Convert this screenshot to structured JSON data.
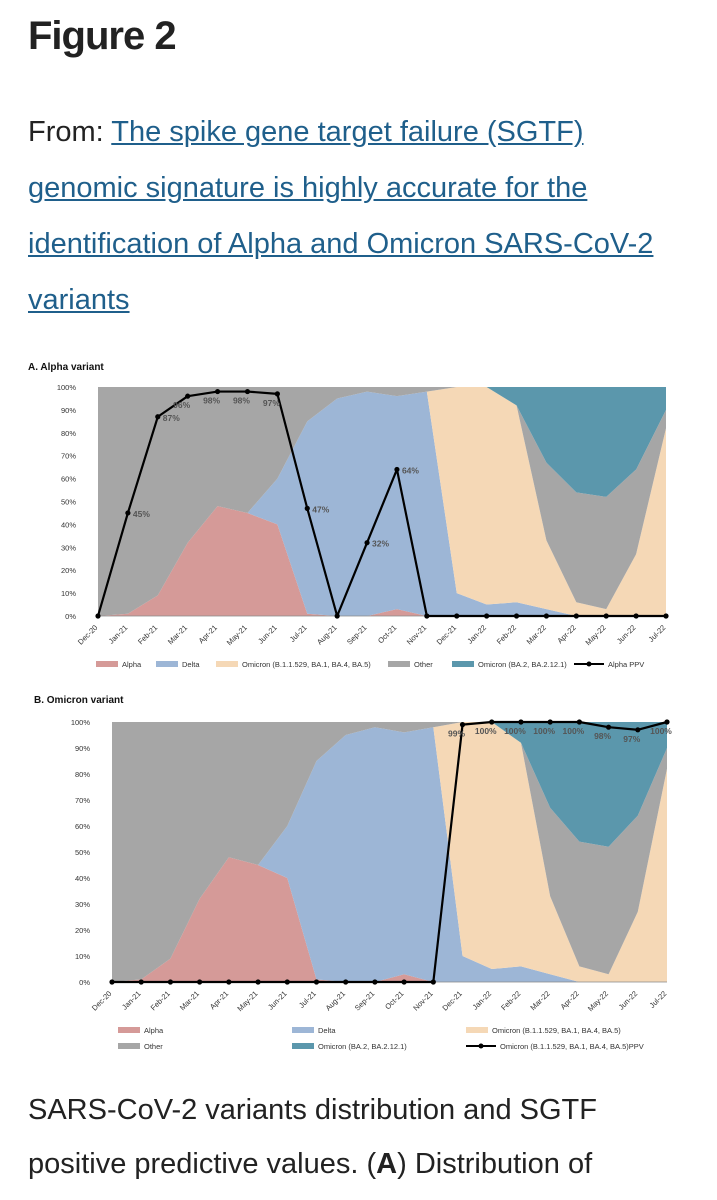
{
  "figure_title": "Figure 2",
  "from_prefix": "From:",
  "article_title": "The spike gene target failure (SGTF) genomic signature is highly accurate for the identification of Alpha and Omicron SARS-CoV-2 variants",
  "caption_prefix": "SARS-CoV-2 variants distribution and SGTF positive predictive values. (",
  "caption_bold": "A",
  "caption_suffix": ") Distribution of",
  "colors": {
    "alpha": "#d59a98",
    "delta": "#9db6d6",
    "omicron_ba1": "#f5d8b6",
    "other": "#a6a6a6",
    "omicron_ba2": "#5b97ac",
    "ppv_line": "#000000"
  },
  "chart_data": [
    {
      "type": "area",
      "title": "A. Alpha variant",
      "x": [
        "Dec-20",
        "Jan-21",
        "Feb-21",
        "Mar-21",
        "Apr-21",
        "May-21",
        "Jun-21",
        "Jul-21",
        "Aug-21",
        "Sep-21",
        "Oct-21",
        "Nov-21",
        "Dec-21",
        "Jan-22",
        "Feb-22",
        "Mar-22",
        "Apr-22",
        "May-22",
        "Jun-22",
        "Jul-22"
      ],
      "y_ticks": [
        "0%",
        "10%",
        "20%",
        "30%",
        "40%",
        "50%",
        "60%",
        "70%",
        "80%",
        "90%",
        "100%"
      ],
      "ylim": [
        0,
        100
      ],
      "series": [
        {
          "name": "Alpha",
          "values": [
            0,
            1,
            9,
            32,
            48,
            45,
            40,
            1,
            0,
            0,
            3,
            0,
            0,
            0,
            0,
            0,
            0,
            0,
            0,
            0
          ]
        },
        {
          "name": "Delta",
          "values": [
            0,
            0,
            0,
            0,
            0,
            0,
            20,
            84,
            95,
            98,
            93,
            98,
            10,
            5,
            6,
            3,
            0,
            0,
            0,
            0
          ]
        },
        {
          "name": "Omicron (B.1.1.529, BA.1, BA.4, BA.5)",
          "values": [
            0,
            0,
            0,
            0,
            0,
            0,
            0,
            0,
            0,
            0,
            0,
            0,
            90,
            95,
            86,
            30,
            6,
            3,
            27,
            82
          ]
        },
        {
          "name": "Other",
          "values": [
            100,
            99,
            91,
            68,
            52,
            55,
            40,
            15,
            5,
            2,
            4,
            2,
            0,
            0,
            0,
            34,
            48,
            49,
            37,
            8
          ]
        },
        {
          "name": "Omicron (BA.2, BA.2.12.1)",
          "values": [
            0,
            0,
            0,
            0,
            0,
            0,
            0,
            0,
            0,
            0,
            0,
            0,
            0,
            0,
            8,
            33,
            46,
            48,
            36,
            10
          ]
        }
      ],
      "line": {
        "name": "Alpha PPV",
        "values": [
          0,
          45,
          87,
          96,
          98,
          98,
          97,
          47,
          0,
          32,
          64,
          0,
          0,
          0,
          0,
          0,
          0,
          0,
          0,
          0
        ],
        "labels": [
          "",
          "45%",
          "87%",
          "96%",
          "98%",
          "98%",
          "97%",
          "47%",
          "",
          "32%",
          "64%",
          "",
          "",
          "",
          "",
          "",
          "",
          "",
          "",
          ""
        ]
      },
      "legend_position": "bottom",
      "grid": false
    },
    {
      "type": "area",
      "title": "B. Omicron variant",
      "x": [
        "Dec-20",
        "Jan-21",
        "Feb-21",
        "Mar-21",
        "Apr-21",
        "May-21",
        "Jun-21",
        "Jul-21",
        "Aug-21",
        "Sep-21",
        "Oct-21",
        "Nov-21",
        "Dec-21",
        "Jan-22",
        "Feb-22",
        "Mar-22",
        "Apr-22",
        "May-22",
        "Jun-22",
        "Jul-22"
      ],
      "y_ticks": [
        "0%",
        "10%",
        "20%",
        "30%",
        "40%",
        "50%",
        "60%",
        "70%",
        "80%",
        "90%",
        "100%"
      ],
      "ylim": [
        0,
        100
      ],
      "series": [
        {
          "name": "Alpha",
          "values": [
            0,
            1,
            9,
            32,
            48,
            45,
            40,
            1,
            0,
            0,
            3,
            0,
            0,
            0,
            0,
            0,
            0,
            0,
            0,
            0
          ]
        },
        {
          "name": "Delta",
          "values": [
            0,
            0,
            0,
            0,
            0,
            0,
            20,
            84,
            95,
            98,
            93,
            98,
            10,
            5,
            6,
            3,
            0,
            0,
            0,
            0
          ]
        },
        {
          "name": "Omicron (B.1.1.529, BA.1, BA.4, BA.5)",
          "values": [
            0,
            0,
            0,
            0,
            0,
            0,
            0,
            0,
            0,
            0,
            0,
            0,
            90,
            95,
            86,
            30,
            6,
            3,
            27,
            82
          ]
        },
        {
          "name": "Other",
          "values": [
            100,
            99,
            91,
            68,
            52,
            55,
            40,
            15,
            5,
            2,
            4,
            2,
            0,
            0,
            0,
            34,
            48,
            49,
            37,
            8
          ]
        },
        {
          "name": "Omicron (BA.2, BA.2.12.1)",
          "values": [
            0,
            0,
            0,
            0,
            0,
            0,
            0,
            0,
            0,
            0,
            0,
            0,
            0,
            0,
            8,
            33,
            46,
            48,
            36,
            10
          ]
        }
      ],
      "line": {
        "name": "Omicron (B.1.1.529, BA.1, BA.4, BA.5)PPV",
        "values": [
          0,
          0,
          0,
          0,
          0,
          0,
          0,
          0,
          0,
          0,
          0,
          0,
          99,
          100,
          100,
          100,
          100,
          98,
          97,
          100
        ],
        "labels": [
          "",
          "",
          "",
          "",
          "",
          "",
          "",
          "",
          "",
          "",
          "",
          "",
          "99%",
          "100%",
          "100%",
          "100%",
          "100%",
          "98%",
          "97%",
          "100%"
        ]
      },
      "legend_position": "bottom",
      "grid": false
    }
  ]
}
